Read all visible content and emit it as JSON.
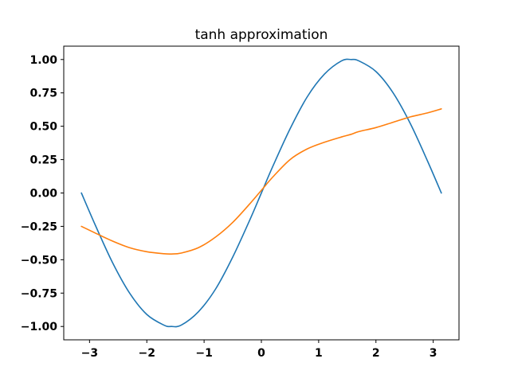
{
  "chart_data": {
    "type": "line",
    "title": "tanh approximation",
    "xlabel": "",
    "ylabel": "",
    "xlim": [
      -3.45,
      3.45
    ],
    "ylim": [
      -1.1,
      1.1
    ],
    "x_ticks": [
      -3,
      -2,
      -1,
      0,
      1,
      2,
      3
    ],
    "x_tick_labels": [
      "−3",
      "−2",
      "−1",
      "0",
      "1",
      "2",
      "3"
    ],
    "y_ticks": [
      1.0,
      0.75,
      0.5,
      0.25,
      0.0,
      -0.25,
      -0.5,
      -0.75,
      -1.0
    ],
    "y_tick_labels": [
      "1.00",
      "0.75",
      "0.50",
      "0.25",
      "0.00",
      "−0.25",
      "−0.50",
      "−0.75",
      "−1.00"
    ],
    "grid": false,
    "legend": "none",
    "series": [
      {
        "color": "#1f77b4",
        "x": [
          -3.1416,
          -2.9,
          -2.6,
          -2.3,
          -2.0,
          -1.7,
          -1.5708,
          -1.4,
          -1.1,
          -0.8,
          -0.5,
          -0.2,
          0.0,
          0.2,
          0.5,
          0.8,
          1.1,
          1.4,
          1.5708,
          1.7,
          2.0,
          2.3,
          2.6,
          2.9,
          3.1416
        ],
        "y": [
          0.0,
          -0.24,
          -0.52,
          -0.75,
          -0.91,
          -0.99,
          -1.0,
          -0.99,
          -0.89,
          -0.72,
          -0.48,
          -0.2,
          0.0,
          0.2,
          0.48,
          0.72,
          0.89,
          0.99,
          1.0,
          0.99,
          0.91,
          0.75,
          0.52,
          0.24,
          0.0
        ]
      },
      {
        "color": "#ff7f0e",
        "x": [
          -3.1416,
          -2.9,
          -2.6,
          -2.3,
          -2.0,
          -1.7,
          -1.5708,
          -1.4,
          -1.1,
          -0.8,
          -0.5,
          -0.2,
          0.0,
          0.2,
          0.5,
          0.8,
          1.1,
          1.4,
          1.5708,
          1.7,
          2.0,
          2.3,
          2.6,
          2.9,
          3.1416
        ],
        "y": [
          -0.25,
          -0.3,
          -0.36,
          -0.41,
          -0.44,
          -0.455,
          -0.457,
          -0.45,
          -0.41,
          -0.33,
          -0.22,
          -0.08,
          0.02,
          0.12,
          0.25,
          0.33,
          0.38,
          0.42,
          0.44,
          0.46,
          0.49,
          0.53,
          0.57,
          0.6,
          0.63
        ]
      }
    ]
  }
}
